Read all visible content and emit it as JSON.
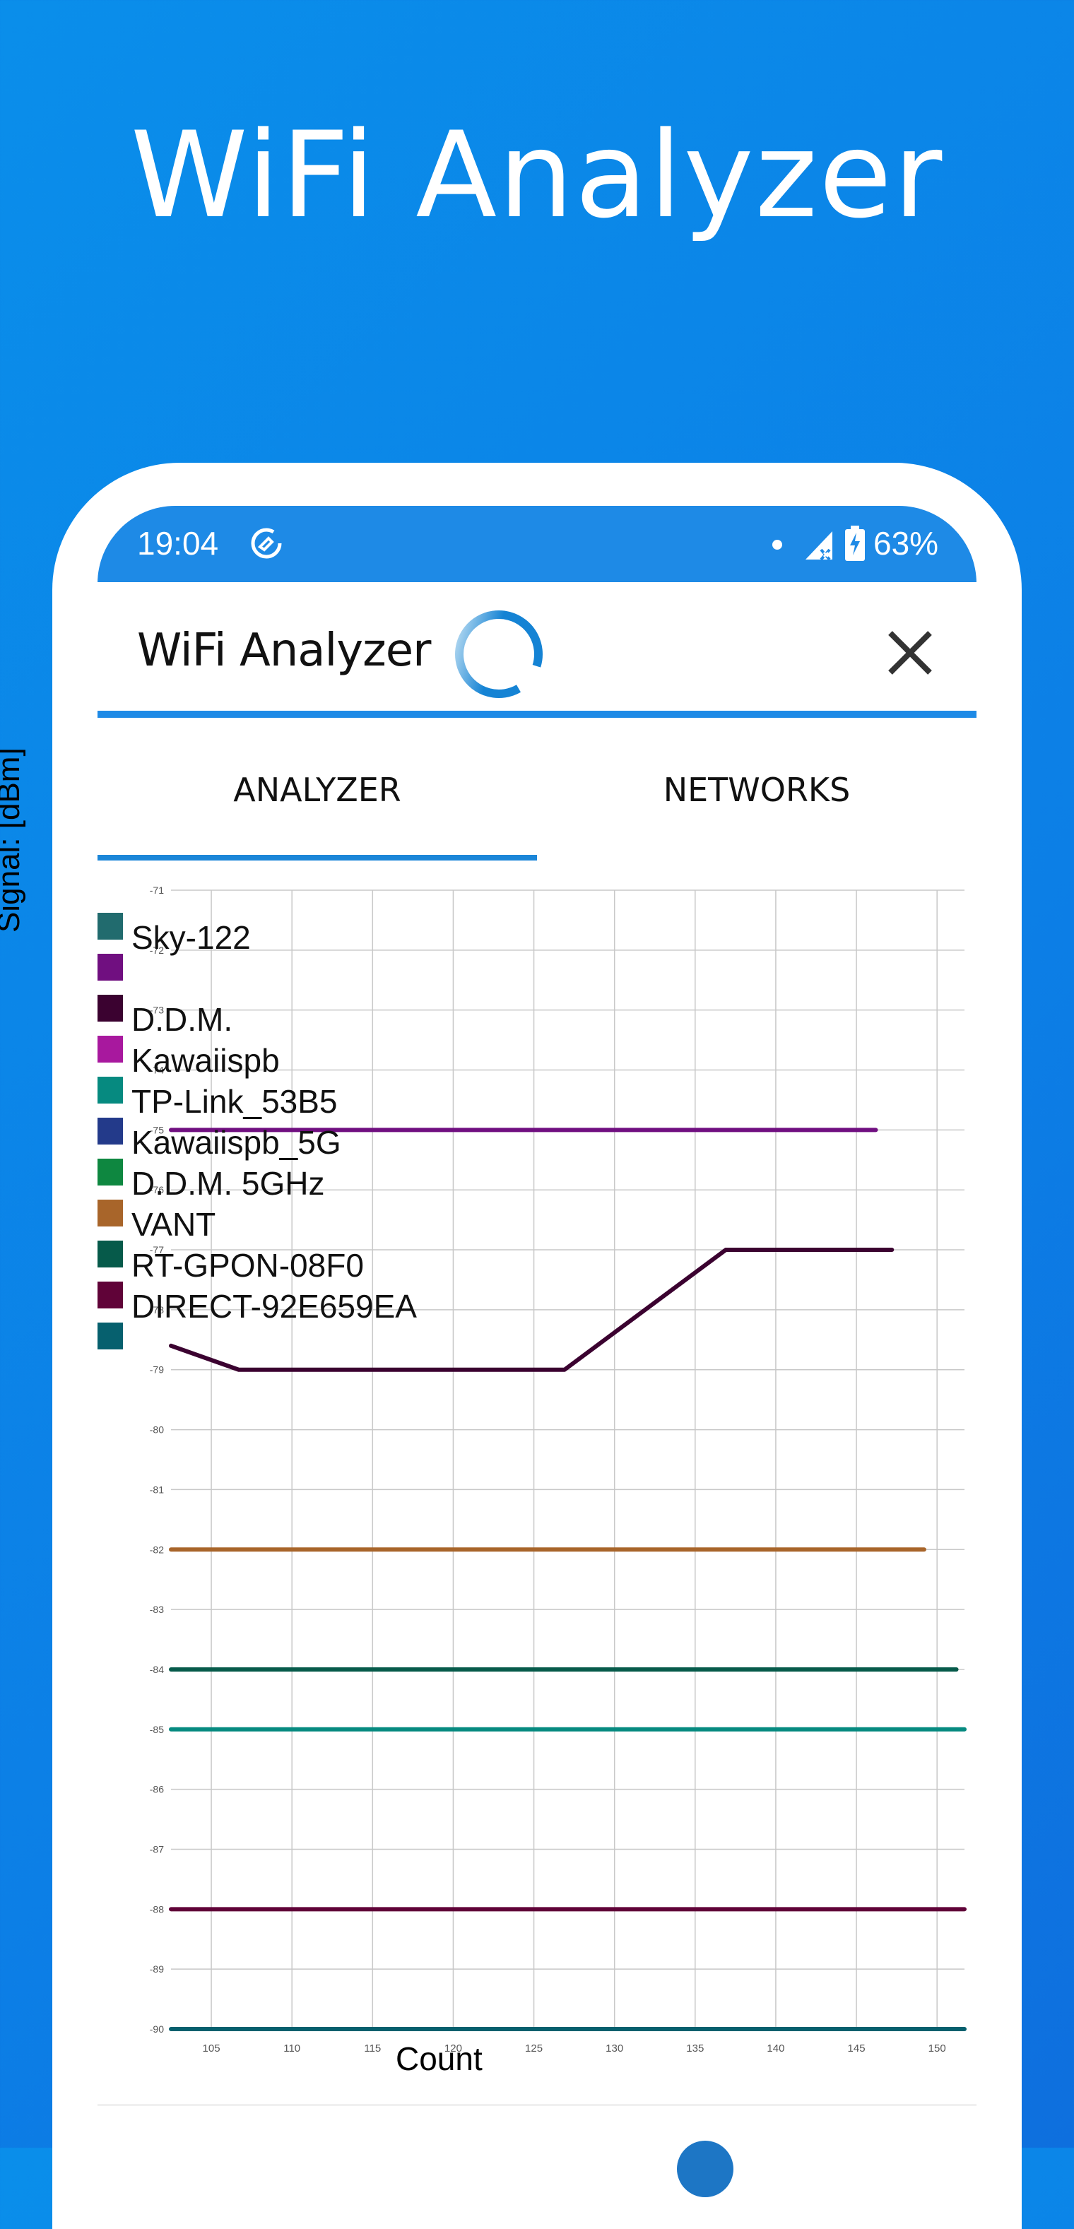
{
  "hero": {
    "title": "WiFi Analyzer"
  },
  "status_bar": {
    "time": "19:04",
    "left_icon": "data-saver-icon",
    "right_icons": [
      "notification-dot-icon",
      "signal-no-sim-icon",
      "battery-charging-icon"
    ],
    "battery_percent": "63%"
  },
  "app_bar": {
    "title": "WiFi Analyzer",
    "loading_icon": "loading-spinner-icon",
    "close_icon": "close-icon",
    "accent_color": "#1e8ae6"
  },
  "tabs": [
    {
      "label": "ANALYZER",
      "active": true
    },
    {
      "label": "NETWORKS",
      "active": false
    }
  ],
  "legend": [
    {
      "label": "Sky-122",
      "color": "#216b6e"
    },
    {
      "label": "",
      "color": "#700f80"
    },
    {
      "label": "D.D.M.",
      "color": "#3b0230"
    },
    {
      "label": "Kawaiispb",
      "color": "#a8189e"
    },
    {
      "label": "TP-Link_53B5",
      "color": "#068a80"
    },
    {
      "label": "Kawaiispb_5G",
      "color": "#233a8a"
    },
    {
      "label": "D.D.M. 5GHz",
      "color": "#0e8740"
    },
    {
      "label": "VANT",
      "color": "#a8652a"
    },
    {
      "label": "RT-GPON-08F0",
      "color": "#065a4a"
    },
    {
      "label": "DIRECT-92E659EA",
      "color": "#600338"
    },
    {
      "label": "",
      "color": "#06606e"
    }
  ],
  "chart_data": {
    "type": "line",
    "title": "",
    "xlabel": "Count",
    "ylabel": "Signal: [dBm]",
    "xlim": [
      102.5,
      151.7
    ],
    "ylim": [
      -90,
      -71
    ],
    "x_ticks": [
      105,
      110,
      115,
      120,
      125,
      130,
      135,
      140,
      145,
      150
    ],
    "y_ticks": [
      -71,
      -72,
      -73,
      -74,
      -75,
      -76,
      -77,
      -78,
      -79,
      -80,
      -81,
      -82,
      -83,
      -84,
      -85,
      -86,
      -87,
      -88,
      -89,
      -90
    ],
    "grid": true,
    "legend_position": "top-left inside",
    "series": [
      {
        "name": "",
        "color": "#700f80",
        "points": [
          [
            102.5,
            -75
          ],
          [
            146.2,
            -75
          ]
        ]
      },
      {
        "name": "D.D.M.",
        "color": "#3b0230",
        "points": [
          [
            102.5,
            -78.6
          ],
          [
            106.7,
            -79
          ],
          [
            126.9,
            -79
          ],
          [
            136.9,
            -77
          ],
          [
            147.2,
            -77
          ]
        ]
      },
      {
        "name": "VANT",
        "color": "#a8652a",
        "points": [
          [
            102.5,
            -82
          ],
          [
            149.2,
            -82
          ]
        ]
      },
      {
        "name": "RT-GPON-08F0",
        "color": "#065a4a",
        "points": [
          [
            102.5,
            -84
          ],
          [
            151.2,
            -84
          ]
        ]
      },
      {
        "name": "TP-Link_53B5",
        "color": "#068a80",
        "points": [
          [
            102.5,
            -85
          ],
          [
            151.7,
            -85
          ]
        ]
      },
      {
        "name": "DIRECT-92E659EA",
        "color": "#600338",
        "points": [
          [
            102.5,
            -88
          ],
          [
            151.7,
            -88
          ]
        ]
      },
      {
        "name": "",
        "color": "#06606e",
        "points": [
          [
            102.5,
            -90
          ],
          [
            151.7,
            -90
          ]
        ]
      }
    ]
  }
}
